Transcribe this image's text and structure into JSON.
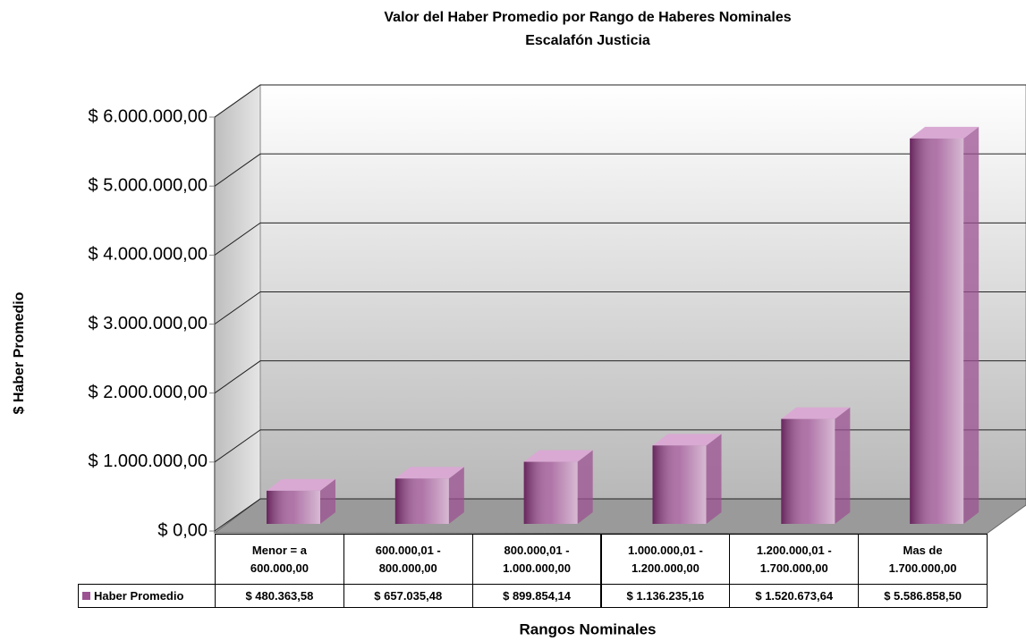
{
  "chart_data": {
    "type": "bar3d",
    "title": "Valor del Haber Promedio por Rango de Haberes Nominales",
    "subtitle": "Escalafón Justicia",
    "y_label": "$ Haber Promedio",
    "x_label": "Rangos Nominales",
    "categories": [
      "Menor = a\n600.000,00",
      "600.000,01 -\n800.000,00",
      "800.000,01 -\n1.000.000,00",
      "1.000.000,01 -\n1.200.000,00",
      "1.200.000,01 -\n1.700.000,00",
      "Mas de\n1.700.000,00"
    ],
    "series": [
      {
        "name": "Haber Promedio",
        "color": "#9c5292",
        "values": [
          480363.58,
          657035.48,
          899854.14,
          1136235.16,
          1520673.64,
          5586858.5
        ],
        "value_labels": [
          "$ 480.363,58",
          "$ 657.035,48",
          "$ 899.854,14",
          "$ 1.136.235,16",
          "$ 1.520.673,64",
          "$ 5.586.858,50"
        ]
      }
    ],
    "ylim": [
      0,
      6000000
    ],
    "yticks": [
      {
        "value": 0,
        "label": "$ 0,00"
      },
      {
        "value": 1000000,
        "label": "$ 1.000.000,00"
      },
      {
        "value": 2000000,
        "label": "$ 2.000.000,00"
      },
      {
        "value": 3000000,
        "label": "$ 3.000.000,00"
      },
      {
        "value": 4000000,
        "label": "$ 4.000.000,00"
      },
      {
        "value": 5000000,
        "label": "$ 5.000.000,00"
      },
      {
        "value": 6000000,
        "label": "$ 6.000.000,00"
      }
    ],
    "grid": true
  }
}
